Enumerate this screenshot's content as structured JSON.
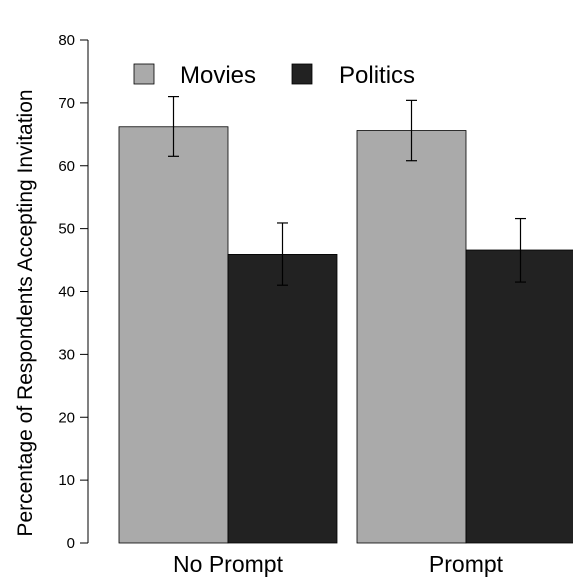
{
  "chart_data": {
    "type": "bar",
    "title": "",
    "xlabel": "",
    "ylabel": "Percentage of Respondents Accepting Invitation",
    "categories": [
      "No Prompt",
      "Prompt"
    ],
    "series": [
      {
        "name": "Movies",
        "color": "#aaaaaa",
        "values": [
          66.2,
          65.6
        ],
        "error_low": [
          61.5,
          60.8
        ],
        "error_high": [
          71.0,
          70.4
        ]
      },
      {
        "name": "Politics",
        "color": "#222222",
        "values": [
          45.9,
          46.6
        ],
        "error_low": [
          41.0,
          41.5
        ],
        "error_high": [
          50.9,
          51.6
        ]
      }
    ],
    "ylim": [
      0,
      80
    ],
    "yticks": [
      0,
      10,
      20,
      30,
      40,
      50,
      60,
      70,
      80
    ],
    "grid": false,
    "legend_position": "top-left"
  }
}
